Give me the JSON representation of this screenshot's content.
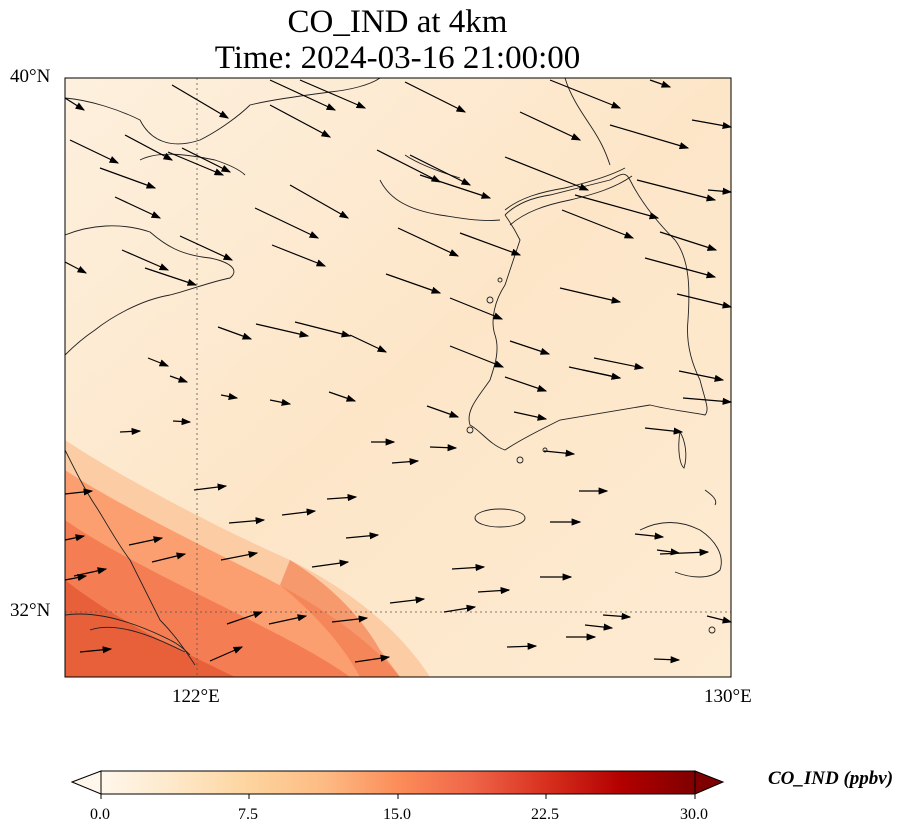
{
  "title": {
    "line1": "CO_IND at 4km",
    "line2": "Time: 2024-03-16 21:00:00"
  },
  "axes": {
    "lat_ticks": [
      "40°N",
      "32°N"
    ],
    "lon_ticks": [
      "122°E",
      "130°E"
    ],
    "lat_range": [
      31,
      40
    ],
    "lon_range": [
      120,
      130
    ]
  },
  "colorbar": {
    "label": "CO_IND (ppbv)",
    "ticks": [
      "0.0",
      "7.5",
      "15.0",
      "22.5",
      "30.0"
    ],
    "min": 0,
    "max": 30,
    "colormap": [
      "#fff7ec",
      "#fee8c8",
      "#fdd49e",
      "#fdbb84",
      "#fc8d59",
      "#ef6548",
      "#d7301f",
      "#b30000",
      "#7f0000"
    ],
    "extend": "both"
  },
  "map": {
    "gridlines": "dotted at 122°E and 32°N",
    "coastline_color": "#000000",
    "wind_vectors": "black arrows pointing east to east-southeast",
    "field_description_colors": {
      "background": "#fdebd0",
      "high": "#e8603c"
    }
  }
}
